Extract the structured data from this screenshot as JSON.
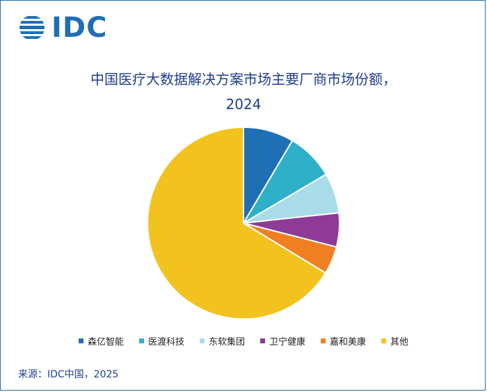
{
  "logo": {
    "text": "IDC"
  },
  "title_line1": "中国医疗大数据解决方案市场主要厂商市场份额，",
  "title_line2": "2024",
  "source": "来源：IDC中国，2025",
  "chart_data": {
    "type": "pie",
    "title": "中国医疗大数据解决方案市场主要厂商市场份额，2024",
    "slices": [
      {
        "label": "森亿智能",
        "value": 8.5,
        "color": "#1f6fb5"
      },
      {
        "label": "医渡科技",
        "value": 8.0,
        "color": "#2fb0c9"
      },
      {
        "label": "东软集团",
        "value": 6.8,
        "color": "#a8dce8"
      },
      {
        "label": "卫宁健康",
        "value": 5.7,
        "color": "#8e3a96"
      },
      {
        "label": "嘉和美康",
        "value": 4.7,
        "color": "#f07f22"
      },
      {
        "label": "其他",
        "value": 66.3,
        "color": "#f2c31f"
      }
    ],
    "start_angle_deg": 0,
    "direction": "clockwise",
    "legend_position": "bottom"
  }
}
